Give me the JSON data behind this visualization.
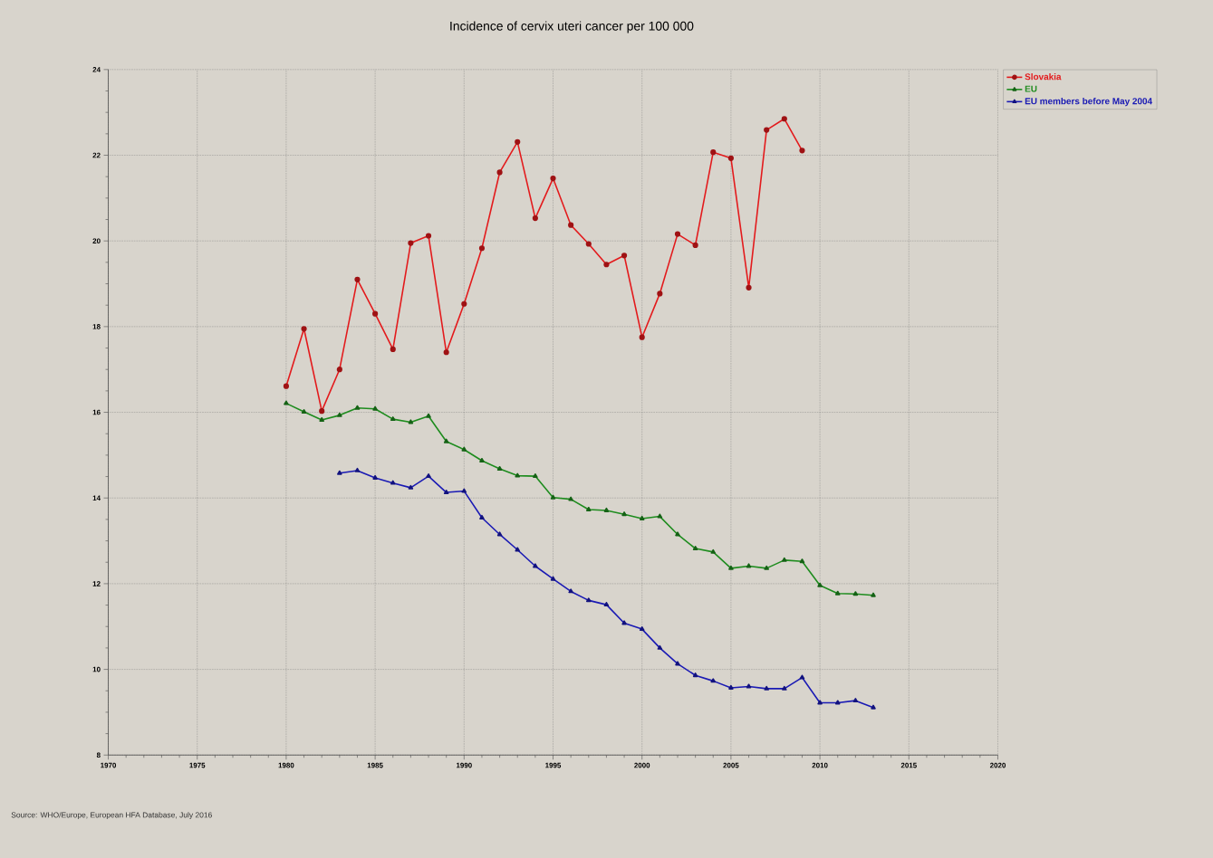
{
  "chart_data": {
    "type": "line",
    "title": "Incidence of cervix uteri cancer per 100 000",
    "x": [
      1980,
      1981,
      1982,
      1983,
      1984,
      1985,
      1986,
      1987,
      1988,
      1989,
      1990,
      1991,
      1992,
      1993,
      1994,
      1995,
      1996,
      1997,
      1998,
      1999,
      2000,
      2001,
      2002,
      2003,
      2004,
      2005,
      2006,
      2007,
      2008,
      2009,
      2010,
      2011,
      2012,
      2013
    ],
    "series": [
      {
        "name": "Slovakia",
        "color": "#e31a1c",
        "marker": "circle",
        "values": [
          16.61,
          17.95,
          16.03,
          17.0,
          19.1,
          18.3,
          17.47,
          19.95,
          20.12,
          17.4,
          18.53,
          19.83,
          21.6,
          22.31,
          20.53,
          21.46,
          20.37,
          19.93,
          19.45,
          19.66,
          17.75,
          18.77,
          20.16,
          19.9,
          22.07,
          21.93,
          18.91,
          22.59,
          22.85,
          22.11,
          null,
          null,
          null,
          null
        ]
      },
      {
        "name": "EU",
        "color": "#1e8c1e",
        "marker": "triangle",
        "values": [
          16.21,
          16.01,
          15.82,
          15.93,
          16.1,
          16.08,
          15.84,
          15.77,
          15.91,
          15.32,
          15.13,
          14.87,
          14.68,
          14.52,
          14.51,
          14.01,
          13.97,
          13.73,
          13.71,
          13.62,
          13.52,
          13.57,
          13.15,
          12.82,
          12.74,
          12.36,
          12.41,
          12.36,
          12.55,
          12.52,
          11.96,
          11.77,
          11.76,
          11.73
        ]
      },
      {
        "name": "EU members before May 2004",
        "color": "#1a1ab4",
        "marker": "triangle",
        "values": [
          null,
          null,
          null,
          14.58,
          14.64,
          14.47,
          14.35,
          14.24,
          14.51,
          14.13,
          14.16,
          13.54,
          13.15,
          12.79,
          12.41,
          12.11,
          11.82,
          11.61,
          11.51,
          11.08,
          10.94,
          10.5,
          10.13,
          9.86,
          9.73,
          9.57,
          9.6,
          9.55,
          9.55,
          9.81,
          9.22,
          9.22,
          9.27,
          9.11
        ]
      }
    ],
    "xlim": [
      1970,
      2020
    ],
    "xticks": [
      1970,
      1975,
      1980,
      1985,
      1990,
      1995,
      2000,
      2005,
      2010,
      2015,
      2020
    ],
    "ylim": [
      8,
      24
    ],
    "yticks": [
      8,
      10,
      12,
      14,
      16,
      18,
      20,
      22,
      24
    ],
    "grid": true,
    "legend": "top right",
    "line_style": "solid",
    "annotations": [
      "Source: WHO/Europe, European HFA Database, July 2016"
    ]
  }
}
